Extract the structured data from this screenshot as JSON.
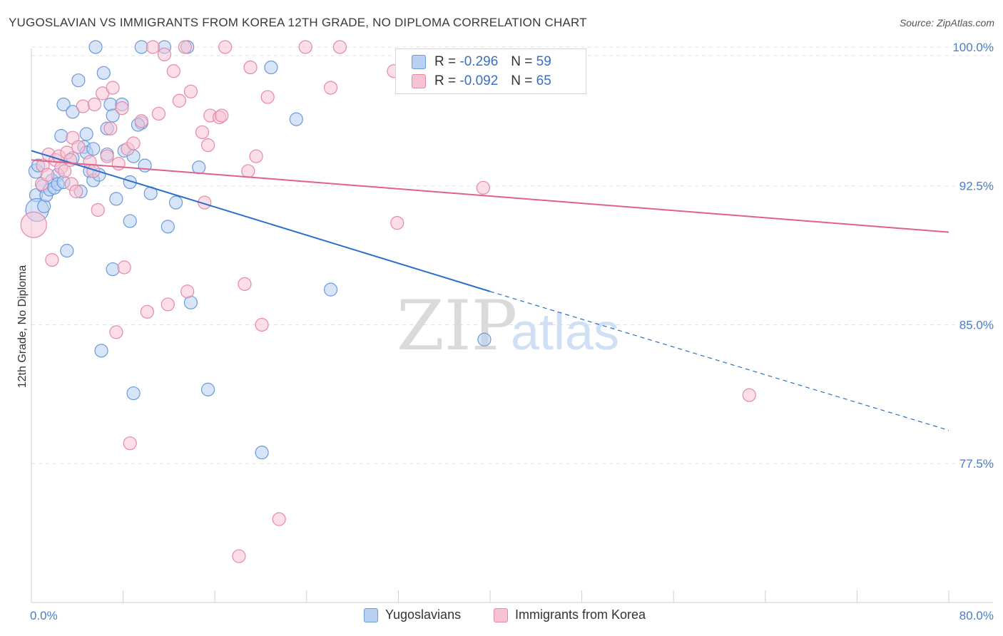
{
  "header": {
    "title": "YUGOSLAVIAN VS IMMIGRANTS FROM KOREA 12TH GRADE, NO DIPLOMA CORRELATION CHART",
    "source": "Source: ZipAtlas.com"
  },
  "watermark": {
    "zip": "ZIP",
    "atlas": "atlas"
  },
  "legend": {
    "r_label": "R =",
    "n_label": "N =",
    "series": [
      {
        "name": "Yugoslavians",
        "r": "-0.296",
        "n": "59"
      },
      {
        "name": "Immigrants from Korea",
        "r": "-0.092",
        "n": "65"
      }
    ]
  },
  "colors": {
    "blue_fill": "#b8d0f2",
    "blue_stroke": "#6a9ad8",
    "blue_line": "#2a6fcc",
    "pink_fill": "#f7c3d3",
    "pink_stroke": "#e48aa8",
    "pink_line": "#e0608e",
    "tick_text": "#4a7cc7"
  },
  "chart_data": {
    "type": "scatter",
    "title": "YUGOSLAVIAN VS IMMIGRANTS FROM KOREA 12TH GRADE, NO DIPLOMA CORRELATION CHART",
    "xlabel": "",
    "ylabel": "12th Grade, No Diploma",
    "xlim": [
      0,
      80
    ],
    "ylim": [
      70.0,
      101.0
    ],
    "x_tick_labels": [
      "0.0%",
      "80.0%"
    ],
    "y_ticks": [
      {
        "value": 100.0,
        "label": "100.0%"
      },
      {
        "value": 92.5,
        "label": "92.5%"
      },
      {
        "value": 85.0,
        "label": "85.0%"
      },
      {
        "value": 77.5,
        "label": "77.5%"
      }
    ],
    "series": [
      {
        "name": "Yugoslavians",
        "r": -0.296,
        "n": 59,
        "trend": {
          "x0": 0,
          "y0": 94.4,
          "x1": 40,
          "y1": 86.8,
          "dash_x1": 80,
          "dash_y1": 79.3
        },
        "points": [
          [
            0.4,
            93.3,
            10
          ],
          [
            0.4,
            92.0,
            9
          ],
          [
            0.5,
            91.2,
            16
          ],
          [
            0.6,
            93.6,
            9
          ],
          [
            1.0,
            92.5,
            9
          ],
          [
            1.1,
            91.4,
            9
          ],
          [
            1.3,
            92.0,
            9
          ],
          [
            1.6,
            92.3,
            9
          ],
          [
            1.8,
            92.8,
            9
          ],
          [
            2.0,
            92.4,
            9
          ],
          [
            2.3,
            93.1,
            9
          ],
          [
            2.3,
            92.6,
            9
          ],
          [
            2.8,
            92.7,
            9
          ],
          [
            2.8,
            96.9,
            9
          ],
          [
            3.1,
            89.0,
            9
          ],
          [
            3.6,
            94.0,
            9
          ],
          [
            3.6,
            96.5,
            9
          ],
          [
            4.1,
            98.2,
            9
          ],
          [
            4.6,
            94.6,
            9
          ],
          [
            4.8,
            95.3,
            9
          ],
          [
            4.8,
            94.3,
            9
          ],
          [
            5.1,
            93.3,
            9
          ],
          [
            5.4,
            92.8,
            9
          ],
          [
            5.4,
            94.5,
            9
          ],
          [
            5.6,
            100.0,
            9
          ],
          [
            5.9,
            93.1,
            9
          ],
          [
            6.1,
            83.6,
            9
          ],
          [
            6.3,
            98.6,
            9
          ],
          [
            6.6,
            95.6,
            9
          ],
          [
            6.9,
            96.9,
            9
          ],
          [
            7.1,
            96.3,
            9
          ],
          [
            7.1,
            88.0,
            9
          ],
          [
            7.4,
            91.8,
            9
          ],
          [
            7.9,
            96.9,
            9
          ],
          [
            8.1,
            94.4,
            9
          ],
          [
            8.6,
            92.7,
            9
          ],
          [
            8.6,
            90.6,
            9
          ],
          [
            8.9,
            81.3,
            9
          ],
          [
            8.9,
            94.1,
            9
          ],
          [
            9.6,
            95.9,
            9
          ],
          [
            9.6,
            100.0,
            9
          ],
          [
            9.9,
            93.6,
            9
          ],
          [
            10.4,
            92.1,
            9
          ],
          [
            11.6,
            100.0,
            9
          ],
          [
            11.9,
            90.3,
            9
          ],
          [
            12.6,
            91.6,
            9
          ],
          [
            13.6,
            100.0,
            9
          ],
          [
            13.9,
            86.2,
            9
          ],
          [
            14.6,
            93.5,
            9
          ],
          [
            15.4,
            81.5,
            9
          ],
          [
            20.1,
            78.1,
            9
          ],
          [
            20.9,
            98.9,
            9
          ],
          [
            23.1,
            96.1,
            9
          ],
          [
            26.1,
            86.9,
            9
          ],
          [
            9.3,
            95.8,
            9
          ],
          [
            4.3,
            92.2,
            9
          ],
          [
            2.6,
            95.2,
            9
          ],
          [
            6.6,
            94.2,
            9
          ],
          [
            39.5,
            84.2,
            9
          ]
        ]
      },
      {
        "name": "Immigrants from Korea",
        "r": -0.092,
        "n": 65,
        "trend": {
          "x0": 0,
          "y0": 93.9,
          "x1": 80,
          "y1": 90.0
        },
        "points": [
          [
            0.2,
            90.4,
            18
          ],
          [
            0.9,
            92.6,
            9
          ],
          [
            1.0,
            93.6,
            9
          ],
          [
            1.4,
            93.1,
            9
          ],
          [
            1.5,
            94.2,
            9
          ],
          [
            1.8,
            88.5,
            9
          ],
          [
            2.1,
            93.9,
            9
          ],
          [
            2.4,
            94.1,
            9
          ],
          [
            2.6,
            93.5,
            9
          ],
          [
            2.9,
            93.3,
            9
          ],
          [
            3.1,
            94.3,
            9
          ],
          [
            3.4,
            93.9,
            9
          ],
          [
            3.5,
            92.6,
            9
          ],
          [
            3.6,
            95.1,
            9
          ],
          [
            3.9,
            92.2,
            9
          ],
          [
            4.1,
            94.6,
            9
          ],
          [
            4.5,
            96.8,
            9
          ],
          [
            5.1,
            93.8,
            9
          ],
          [
            5.4,
            93.3,
            9
          ],
          [
            5.5,
            96.9,
            9
          ],
          [
            5.8,
            91.2,
            9
          ],
          [
            6.2,
            97.5,
            9
          ],
          [
            6.6,
            94.1,
            9
          ],
          [
            6.9,
            95.6,
            9
          ],
          [
            7.1,
            97.8,
            9
          ],
          [
            7.4,
            84.6,
            9
          ],
          [
            7.6,
            93.7,
            9
          ],
          [
            7.9,
            96.7,
            9
          ],
          [
            8.1,
            88.1,
            9
          ],
          [
            8.4,
            94.5,
            9
          ],
          [
            8.6,
            78.6,
            9
          ],
          [
            8.9,
            94.8,
            9
          ],
          [
            9.6,
            96.0,
            9
          ],
          [
            10.1,
            85.7,
            9
          ],
          [
            10.6,
            100.0,
            9
          ],
          [
            11.1,
            96.4,
            9
          ],
          [
            11.6,
            99.6,
            9
          ],
          [
            11.9,
            86.1,
            9
          ],
          [
            12.4,
            98.7,
            9
          ],
          [
            12.9,
            97.1,
            9
          ],
          [
            13.4,
            100.0,
            9
          ],
          [
            13.6,
            86.8,
            9
          ],
          [
            13.9,
            97.6,
            9
          ],
          [
            14.9,
            95.4,
            9
          ],
          [
            15.1,
            91.6,
            9
          ],
          [
            15.4,
            94.7,
            9
          ],
          [
            15.6,
            96.3,
            9
          ],
          [
            16.4,
            96.2,
            9
          ],
          [
            16.6,
            96.3,
            9
          ],
          [
            16.9,
            100.0,
            9
          ],
          [
            18.1,
            72.5,
            9
          ],
          [
            18.6,
            87.2,
            9
          ],
          [
            18.9,
            93.3,
            9
          ],
          [
            19.1,
            98.9,
            9
          ],
          [
            19.6,
            94.1,
            9
          ],
          [
            20.1,
            85.0,
            9
          ],
          [
            20.6,
            97.3,
            9
          ],
          [
            21.6,
            74.5,
            9
          ],
          [
            23.9,
            100.0,
            9
          ],
          [
            26.1,
            97.8,
            9
          ],
          [
            26.9,
            100.0,
            9
          ],
          [
            31.6,
            98.7,
            9
          ],
          [
            31.9,
            90.5,
            9
          ],
          [
            39.4,
            92.4,
            9
          ],
          [
            62.6,
            81.2,
            9
          ]
        ]
      }
    ]
  }
}
